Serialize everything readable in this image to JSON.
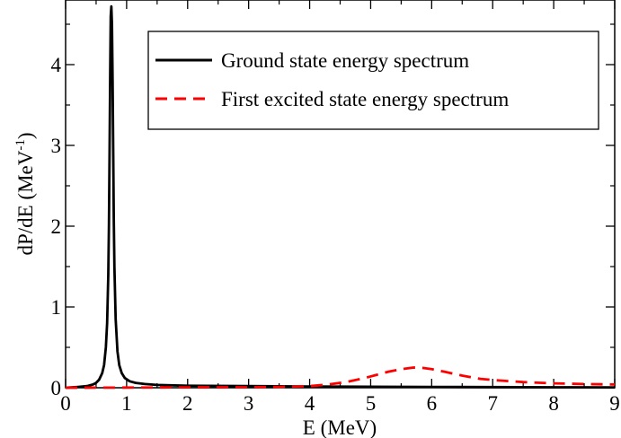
{
  "chart_data": {
    "type": "line",
    "title": "",
    "xlabel": "E (MeV)",
    "ylabel_main": "dP/dE (MeV",
    "ylabel_exp": "-1",
    "ylabel_close": ")",
    "xlim": [
      0,
      9
    ],
    "ylim": [
      0,
      4.8
    ],
    "xticks": [
      0,
      1,
      2,
      3,
      4,
      5,
      6,
      7,
      8,
      9
    ],
    "yticks": [
      0,
      1,
      2,
      3,
      4
    ],
    "grid": false,
    "legend_position": "top-right",
    "series": [
      {
        "name": "Ground state energy spectrum",
        "color": "#000000",
        "dash": "solid",
        "x": [
          0,
          0.2,
          0.35,
          0.45,
          0.5,
          0.55,
          0.6,
          0.63,
          0.66,
          0.68,
          0.7,
          0.71,
          0.72,
          0.73,
          0.74,
          0.75,
          0.76,
          0.77,
          0.78,
          0.79,
          0.8,
          0.82,
          0.85,
          0.88,
          0.92,
          0.97,
          1.05,
          1.15,
          1.3,
          1.5,
          2,
          3,
          4,
          5,
          6,
          7,
          8,
          9
        ],
        "y": [
          0.0,
          0.01,
          0.02,
          0.04,
          0.06,
          0.1,
          0.18,
          0.28,
          0.5,
          0.8,
          1.4,
          2.0,
          2.9,
          3.9,
          4.6,
          4.72,
          4.5,
          3.8,
          2.9,
          2.1,
          1.5,
          0.85,
          0.45,
          0.28,
          0.18,
          0.12,
          0.08,
          0.06,
          0.045,
          0.035,
          0.025,
          0.02,
          0.015,
          0.012,
          0.01,
          0.008,
          0.006,
          0.005
        ]
      },
      {
        "name": "First excited state energy spectrum",
        "color": "#ff0000",
        "dash": "dashed",
        "x": [
          0,
          1,
          2,
          3,
          3.5,
          4,
          4.3,
          4.6,
          4.9,
          5.1,
          5.3,
          5.5,
          5.7,
          5.85,
          6,
          6.2,
          6.5,
          6.8,
          7.1,
          7.5,
          8,
          8.5,
          9
        ],
        "y": [
          0.0,
          0.002,
          0.004,
          0.006,
          0.01,
          0.02,
          0.04,
          0.07,
          0.12,
          0.16,
          0.2,
          0.23,
          0.25,
          0.245,
          0.23,
          0.2,
          0.15,
          0.11,
          0.09,
          0.07,
          0.055,
          0.045,
          0.04
        ]
      }
    ]
  }
}
